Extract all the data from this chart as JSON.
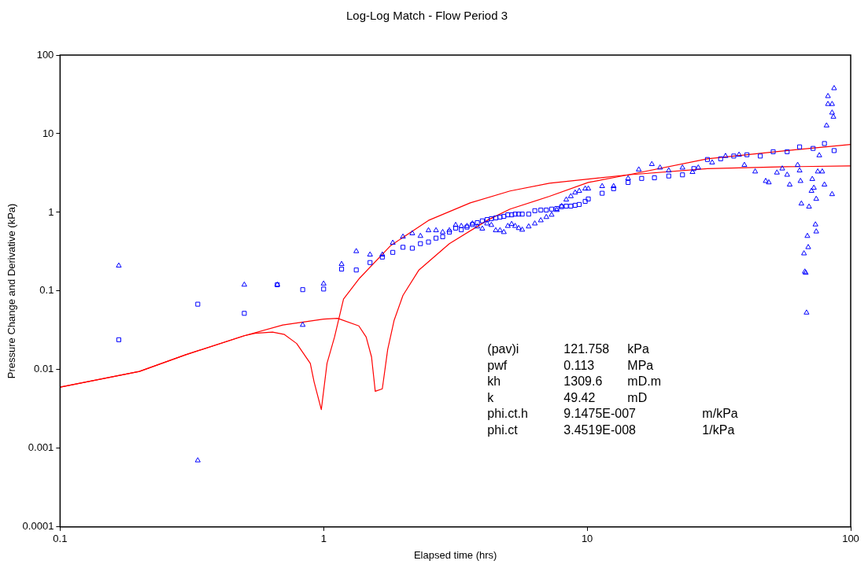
{
  "chart_data": {
    "type": "scatter",
    "title": "Log-Log Match - Flow Period 3",
    "xlabel": "Elapsed time (hrs)",
    "ylabel": "Pressure Change and Derivative (kPa)",
    "log": "xy",
    "grid": false,
    "legend": false,
    "xlim": [
      0.1,
      100
    ],
    "xticks": [
      0.1,
      1,
      10,
      100
    ],
    "ylim": [
      0.0001,
      100
    ],
    "yticks": [
      0.0001,
      0.001,
      0.01,
      0.1,
      1,
      10,
      100
    ],
    "annotations": [
      "(pav)i 121.758 kPa",
      "pwf 0.113 MPa",
      "kh 1309.6 mD.m",
      "k 49.42 mD",
      "phi.ct.h 9.1475E-007 m/kPa",
      "phi.ct 3.4519E-008 1/kPa"
    ],
    "series": [
      {
        "type": "scatter",
        "marker": "square",
        "color": "#0000ff",
        "x": [
          0.167,
          0.333,
          0.5,
          0.667,
          0.833,
          1.0,
          1.17,
          1.33,
          1.5,
          1.67,
          1.83,
          2.0,
          2.17,
          2.33,
          2.5,
          2.67,
          2.83,
          3.0,
          3.17,
          3.33,
          3.5,
          3.67,
          3.83,
          4.0,
          4.17,
          4.33,
          4.5,
          4.67,
          4.83,
          5.0,
          5.17,
          5.33,
          5.5,
          5.67,
          6.0,
          6.33,
          6.67,
          7.0,
          7.33,
          7.67,
          8.0,
          8.33,
          8.67,
          9.0,
          9.33,
          9.83,
          10.1,
          11.4,
          12.6,
          14.3,
          16.1,
          18.0,
          20.4,
          23.0,
          25.4,
          28.6,
          32.1,
          36.0,
          40.4,
          45.4,
          50.8,
          57.4,
          64,
          72,
          79.5,
          86.5
        ],
        "values": [
          0.024,
          0.068,
          0.052,
          0.12,
          0.104,
          0.106,
          0.19,
          0.185,
          0.23,
          0.27,
          0.31,
          0.36,
          0.35,
          0.4,
          0.42,
          0.47,
          0.49,
          0.56,
          0.63,
          0.6,
          0.65,
          0.7,
          0.74,
          0.78,
          0.81,
          0.83,
          0.85,
          0.87,
          0.89,
          0.93,
          0.93,
          0.95,
          0.95,
          0.95,
          0.95,
          1.05,
          1.07,
          1.07,
          1.1,
          1.12,
          1.18,
          1.2,
          1.2,
          1.23,
          1.26,
          1.38,
          1.48,
          1.75,
          2.0,
          2.4,
          2.7,
          2.75,
          2.9,
          3.0,
          3.6,
          4.7,
          4.8,
          5.2,
          5.4,
          5.2,
          5.9,
          5.9,
          6.8,
          6.5,
          7.5,
          6.1
        ]
      },
      {
        "type": "scatter",
        "marker": "triangle",
        "color": "#0000ff",
        "x": [
          0.167,
          0.333,
          0.5,
          0.667,
          0.833,
          1.0,
          1.17,
          1.33,
          1.5,
          1.67,
          1.83,
          2.0,
          2.17,
          2.33,
          2.5,
          2.67,
          2.83,
          3.0,
          3.17,
          3.33,
          3.5,
          3.67,
          3.83,
          4.0,
          4.17,
          4.33,
          4.5,
          4.67,
          4.83,
          5.0,
          5.17,
          5.33,
          5.5,
          5.67,
          6.0,
          6.33,
          6.67,
          7.0,
          7.33,
          7.67,
          8.0,
          8.33,
          8.67,
          9.0,
          9.33,
          9.83,
          10.1,
          11.4,
          12.6,
          14.3,
          15.7,
          17.6,
          18.9,
          20.4,
          23.0,
          25.1,
          26.4,
          29.8,
          33.5,
          37.7,
          39.5,
          43.4,
          47.6,
          48.9,
          52.5,
          55,
          57.4,
          58.7,
          62.9,
          64,
          64.5,
          65,
          66.5,
          67,
          67.5,
          68,
          68.5,
          69,
          69.5,
          71,
          71.5,
          72.5,
          73.5,
          74,
          74,
          75,
          76,
          78,
          79.5,
          81,
          82,
          82,
          85,
          85,
          85,
          86,
          86.5
        ],
        "values": [
          0.21,
          0.0007,
          0.12,
          0.12,
          0.037,
          0.124,
          0.22,
          0.32,
          0.29,
          0.29,
          0.41,
          0.49,
          0.54,
          0.5,
          0.59,
          0.59,
          0.56,
          0.59,
          0.69,
          0.67,
          0.67,
          0.72,
          0.66,
          0.62,
          0.72,
          0.69,
          0.59,
          0.59,
          0.56,
          0.67,
          0.71,
          0.67,
          0.63,
          0.6,
          0.66,
          0.72,
          0.79,
          0.87,
          0.93,
          1.07,
          1.2,
          1.45,
          1.6,
          1.78,
          1.87,
          2.0,
          2.0,
          2.15,
          2.15,
          2.7,
          3.5,
          4.1,
          3.7,
          3.4,
          3.7,
          3.25,
          3.7,
          4.3,
          5.2,
          5.4,
          4.0,
          3.3,
          2.5,
          2.4,
          3.2,
          3.6,
          3.0,
          2.25,
          4.0,
          3.4,
          2.5,
          1.29,
          0.3,
          0.176,
          0.17,
          0.053,
          0.5,
          0.36,
          1.18,
          1.87,
          2.65,
          2.05,
          0.7,
          0.57,
          1.48,
          3.3,
          5.3,
          3.3,
          2.25,
          12.7,
          30,
          23.8,
          23.8,
          18.5,
          1.7,
          16.4,
          37.8
        ]
      },
      {
        "type": "line",
        "marker": "none",
        "color": "#ff0000",
        "x": [
          0.1,
          0.2,
          0.3,
          0.5,
          0.7,
          1.0,
          1.13,
          1.36,
          1.45,
          1.52,
          1.57,
          1.67,
          1.75,
          1.85,
          2.0,
          2.3,
          3.0,
          4.2,
          5.1,
          7.2,
          10.1,
          14.3,
          28.6,
          57.4,
          100
        ],
        "values": [
          0.006,
          0.0095,
          0.0155,
          0.027,
          0.037,
          0.044,
          0.045,
          0.036,
          0.026,
          0.0145,
          0.0053,
          0.0057,
          0.018,
          0.042,
          0.088,
          0.185,
          0.4,
          0.8,
          1.1,
          1.6,
          2.4,
          3.0,
          4.8,
          6.1,
          7.3
        ]
      },
      {
        "type": "line",
        "marker": "none",
        "color": "#ff0000",
        "x": [
          0.1,
          0.2,
          0.3,
          0.5,
          0.55,
          0.64,
          0.71,
          0.79,
          0.89,
          0.92,
          0.98,
          1.03,
          1.1,
          1.19,
          1.37,
          1.8,
          2.5,
          3.6,
          5.1,
          7.2,
          10.1,
          14.3,
          28.6,
          57.4,
          100
        ],
        "values": [
          0.006,
          0.0095,
          0.0155,
          0.027,
          0.029,
          0.03,
          0.028,
          0.0215,
          0.012,
          0.007,
          0.0031,
          0.012,
          0.026,
          0.079,
          0.146,
          0.38,
          0.79,
          1.32,
          1.87,
          2.35,
          2.65,
          3.0,
          3.6,
          3.8,
          3.9
        ]
      }
    ]
  }
}
